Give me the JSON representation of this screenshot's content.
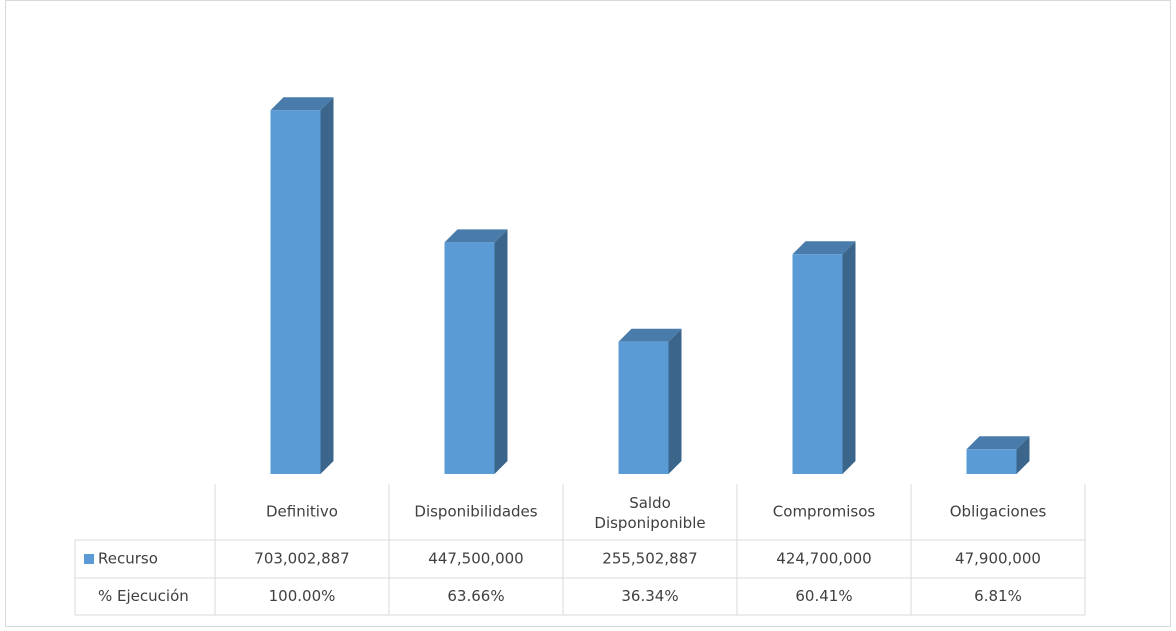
{
  "chart_data": {
    "type": "bar3d",
    "categories": [
      "Definitivo",
      "Disponibilidades",
      "Saldo Disponiponible",
      "Compromisos",
      "Obligaciones"
    ],
    "series": [
      {
        "name": "Recurso",
        "color": "#5b9bd5",
        "values": [
          703002887,
          447500000,
          255502887,
          424700000,
          47900000
        ],
        "value_labels": [
          "703,002,887",
          "447,500,000",
          "255,502,887",
          "424,700,000",
          "47,900,000"
        ]
      }
    ],
    "table_rows": [
      {
        "name": "% Ejecución",
        "cells": [
          "100.00%",
          "63.66%",
          "36.34%",
          "60.41%",
          "6.81%"
        ]
      }
    ],
    "ylim": [
      0,
      800000000
    ]
  }
}
